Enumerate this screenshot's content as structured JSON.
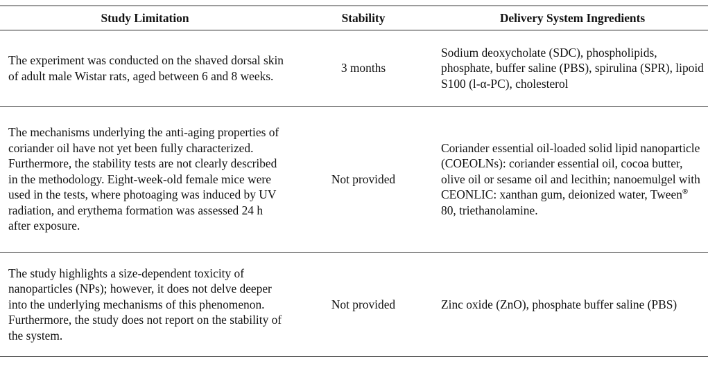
{
  "table": {
    "headers": [
      "Study Limitation",
      "Stability",
      "Delivery System Ingredients"
    ],
    "rows": [
      {
        "limitation": "The experiment was conducted on the shaved dorsal skin of adult male Wistar rats, aged between 6 and 8 weeks.",
        "stability": "3 months",
        "ingredients": "Sodium deoxycholate (SDC), phospholipids, phosphate, buffer saline (PBS), spirulina (SPR), lipoid S100 (l-α-PC), cholesterol"
      },
      {
        "limitation": "The mechanisms underlying the anti-aging properties of coriander oil have not yet been fully characterized. Furthermore, the stability tests are not clearly described in the methodology. Eight-week-old female mice were used in the tests, where photoaging was induced by UV radiation, and erythema formation was assessed 24 h after exposure.",
        "stability": "Not provided",
        "ingredients_before": "Coriander essential oil-loaded solid lipid nanoparticle (COEOLNs): coriander essential oil, cocoa butter, olive oil or sesame oil and lecithin; nanoemulgel with CEONLIC: xanthan gum, deionized water, Tween",
        "ingredients_mark": "®",
        "ingredients_after": " 80, triethanolamine."
      },
      {
        "limitation": "The study highlights a size-dependent toxicity of nanoparticles (NPs); however, it does not delve deeper into the underlying mechanisms of this phenomenon. Furthermore, the study does not report on the stability of the system.",
        "stability": "Not provided",
        "ingredients": "Zinc oxide (ZnO), phosphate buffer saline (PBS)"
      }
    ]
  }
}
